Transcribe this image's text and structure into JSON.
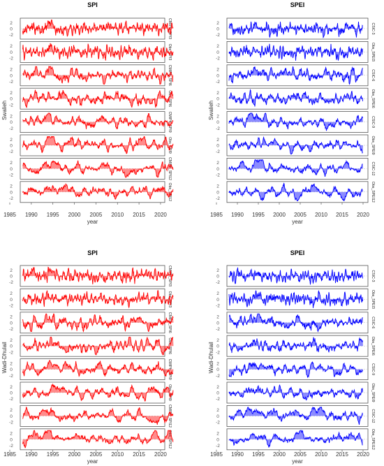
{
  "chart_data": [
    {
      "type": "area",
      "title": "SPI",
      "ylabel": "Swalieh",
      "xlabel": "year",
      "x_ticks": [
        1985,
        1990,
        1995,
        2000,
        2005,
        2010,
        2015,
        2020
      ],
      "y_ticks": [
        2,
        0,
        -2
      ],
      "ylim": [
        -3,
        3
      ],
      "color": "#ff0000",
      "series": [
        {
          "name": "CMIPh_SPI3",
          "x_start": 1988,
          "x_end": 2023,
          "scale": 3
        },
        {
          "name": "Obs_SPI3",
          "x_start": 1988,
          "x_end": 2023,
          "scale": 3
        },
        {
          "name": "CMIPh_SPI6",
          "x_start": 1988,
          "x_end": 2023,
          "scale": 6
        },
        {
          "name": "Obs_SPI6",
          "x_start": 1988,
          "x_end": 2023,
          "scale": 6
        },
        {
          "name": "CMIPh_SPI9",
          "x_start": 1988,
          "x_end": 2023,
          "scale": 9
        },
        {
          "name": "Obs_SPI9",
          "x_start": 1988,
          "x_end": 2023,
          "scale": 9
        },
        {
          "name": "CMIPh_SPI12",
          "x_start": 1988,
          "x_end": 2023,
          "scale": 12
        },
        {
          "name": "Obs_SPI12",
          "x_start": 1988,
          "x_end": 2023,
          "scale": 12
        }
      ]
    },
    {
      "type": "area",
      "title": "SPEI",
      "ylabel": "Swalieh",
      "xlabel": "year",
      "x_ticks": [
        1985,
        1990,
        1995,
        2000,
        2005,
        2010,
        2015,
        2020
      ],
      "y_ticks": [
        2,
        0,
        -2
      ],
      "ylim": [
        -3,
        3
      ],
      "color": "#0000ff",
      "series": [
        {
          "name": "CSIC-3",
          "x_start": 1988,
          "x_end": 2020,
          "scale": 3
        },
        {
          "name": "Obs_SPEI3",
          "x_start": 1988,
          "x_end": 2020,
          "scale": 3
        },
        {
          "name": "CSIC-6",
          "x_start": 1988,
          "x_end": 2020,
          "scale": 6
        },
        {
          "name": "Obs_SPEI6",
          "x_start": 1988,
          "x_end": 2020,
          "scale": 6
        },
        {
          "name": "CSIC-9",
          "x_start": 1988,
          "x_end": 2020,
          "scale": 9
        },
        {
          "name": "Obs_SPEI9",
          "x_start": 1988,
          "x_end": 2020,
          "scale": 9
        },
        {
          "name": "CSIC-12",
          "x_start": 1988,
          "x_end": 2020,
          "scale": 12
        },
        {
          "name": "Obs_SPEI12",
          "x_start": 1988,
          "x_end": 2020,
          "scale": 12
        }
      ]
    },
    {
      "type": "area",
      "title": "SPI",
      "ylabel": "Wadi-Dhulail",
      "xlabel": "year",
      "x_ticks": [
        1985,
        1990,
        1995,
        2000,
        2005,
        2010,
        2015,
        2020
      ],
      "y_ticks": [
        2,
        0,
        -2
      ],
      "ylim": [
        -3,
        3
      ],
      "color": "#ff0000",
      "series": [
        {
          "name": "CMIPh_SPI3",
          "x_start": 1988,
          "x_end": 2023,
          "scale": 3
        },
        {
          "name": "Obs_SPI3",
          "x_start": 1988,
          "x_end": 2023,
          "scale": 3
        },
        {
          "name": "CMIPh_SPI6",
          "x_start": 1988,
          "x_end": 2023,
          "scale": 6
        },
        {
          "name": "Obs_SPI6",
          "x_start": 1988,
          "x_end": 2023,
          "scale": 6
        },
        {
          "name": "CMIPh_SPI9",
          "x_start": 1988,
          "x_end": 2023,
          "scale": 9
        },
        {
          "name": "Obs_SPI9",
          "x_start": 1988,
          "x_end": 2023,
          "scale": 9
        },
        {
          "name": "CMIPh_SPI12",
          "x_start": 1988,
          "x_end": 2023,
          "scale": 12
        },
        {
          "name": "Obs_SPI12",
          "x_start": 1988,
          "x_end": 2023,
          "scale": 12
        }
      ]
    },
    {
      "type": "area",
      "title": "SPEI",
      "ylabel": "Wadi-Dhulail",
      "xlabel": "year",
      "x_ticks": [
        1985,
        1990,
        1995,
        2000,
        2005,
        2010,
        2015,
        2020
      ],
      "y_ticks": [
        2,
        0,
        -2
      ],
      "ylim": [
        -3,
        3
      ],
      "color": "#0000ff",
      "series": [
        {
          "name": "CSIC-3",
          "x_start": 1988,
          "x_end": 2020,
          "scale": 3
        },
        {
          "name": "Obs_SPEI3",
          "x_start": 1988,
          "x_end": 2020,
          "scale": 3
        },
        {
          "name": "CSIC-6",
          "x_start": 1988,
          "x_end": 2020,
          "scale": 6
        },
        {
          "name": "Obs_SPEI6",
          "x_start": 1988,
          "x_end": 2020,
          "scale": 6
        },
        {
          "name": "CSIC-9",
          "x_start": 1988,
          "x_end": 2020,
          "scale": 9
        },
        {
          "name": "Obs_SPEI9",
          "x_start": 1988,
          "x_end": 2020,
          "scale": 9
        },
        {
          "name": "CSIC-12",
          "x_start": 1988,
          "x_end": 2020,
          "scale": 12
        },
        {
          "name": "Obs_SPEI12",
          "x_start": 1988,
          "x_end": 2020,
          "scale": 12
        }
      ]
    }
  ]
}
